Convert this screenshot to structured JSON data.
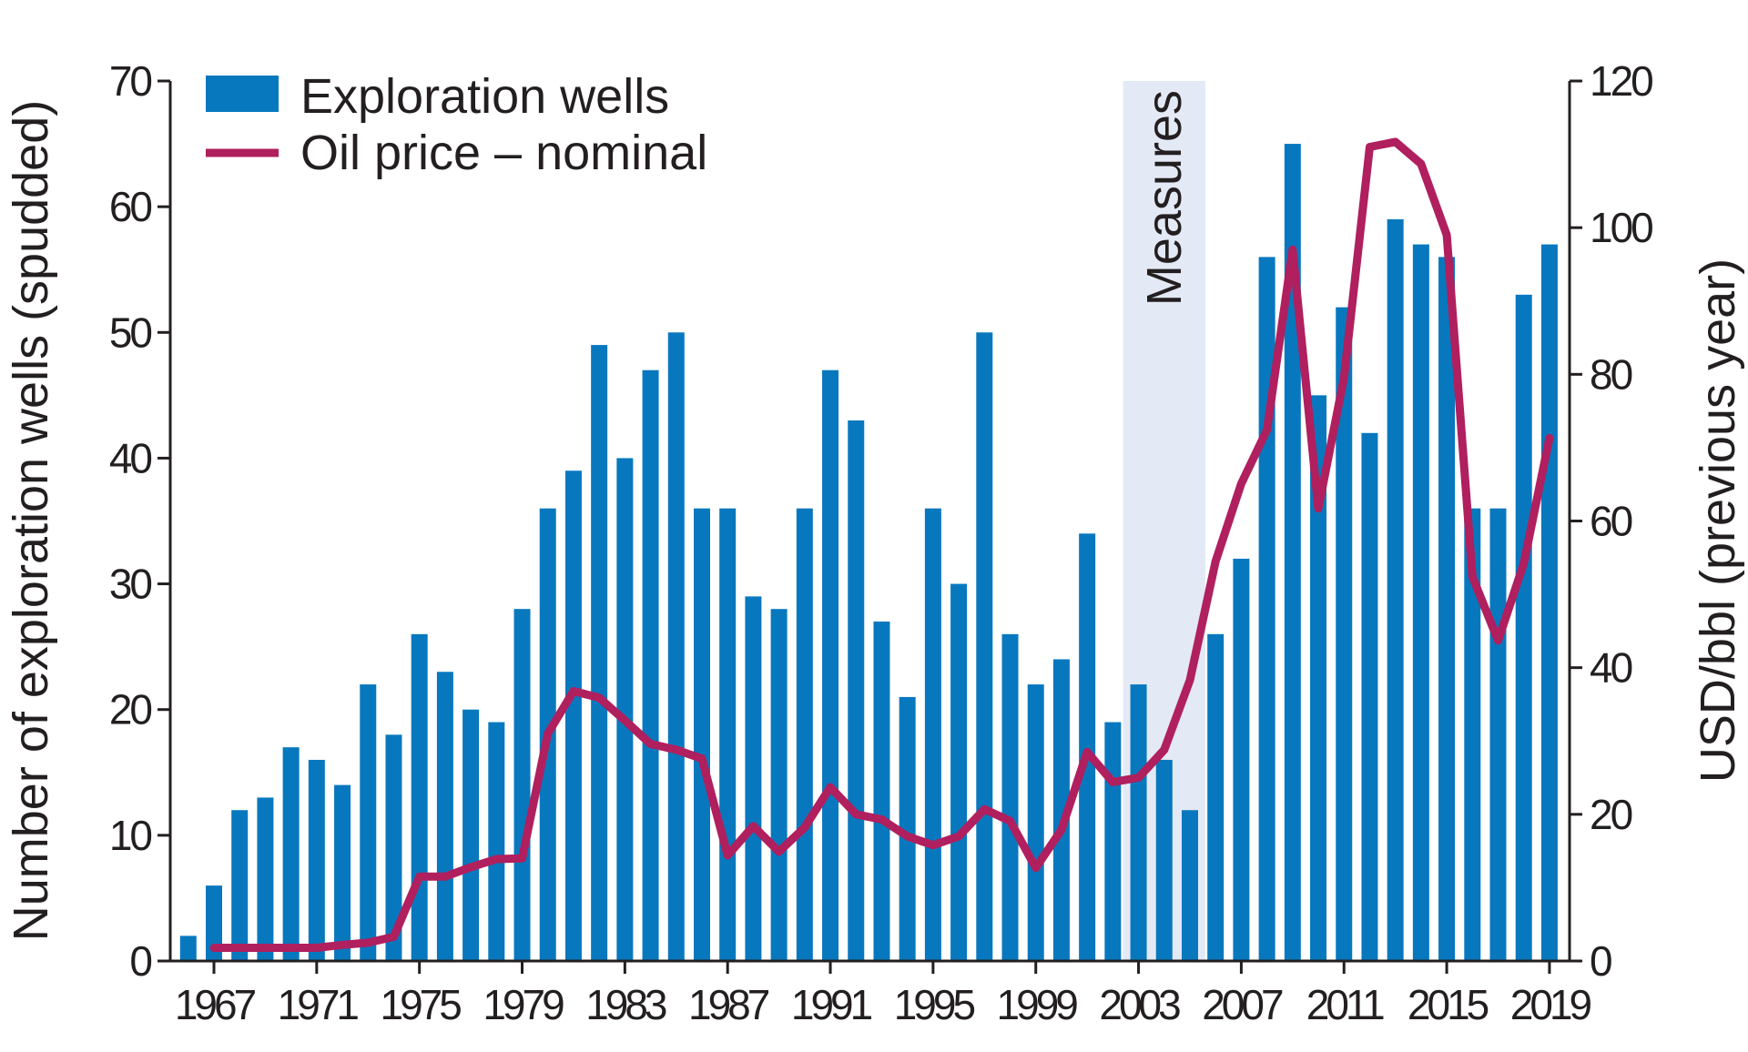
{
  "chart_data": {
    "type": "bar+line",
    "title": "",
    "ylabel": "Number of exploration wells (spudded)",
    "y2label": "USD/bbl (previous year)",
    "ylim": [
      0,
      70
    ],
    "y2lim": [
      0,
      120
    ],
    "yticks": [
      "0",
      "10",
      "20",
      "30",
      "40",
      "50",
      "60",
      "70"
    ],
    "y2ticks": [
      "0",
      "20",
      "40",
      "60",
      "80",
      "100",
      "120"
    ],
    "xtick_labels": [
      "1967",
      "1971",
      "1975",
      "1979",
      "1983",
      "1987",
      "1991",
      "1995",
      "1999",
      "2003",
      "2007",
      "2011",
      "2015",
      "2019"
    ],
    "legend_placement": "top-left",
    "shaded_region": {
      "label": "Measures",
      "from": 2002.4,
      "to": 2005.6,
      "color": "#e3e9f5"
    },
    "series": [
      {
        "name": "Exploration wells",
        "kind": "bar",
        "axis": "left",
        "color": "#0878be",
        "x": [
          1966,
          1967,
          1968,
          1969,
          1970,
          1971,
          1972,
          1973,
          1974,
          1975,
          1976,
          1977,
          1978,
          1979,
          1980,
          1981,
          1982,
          1983,
          1984,
          1985,
          1986,
          1987,
          1988,
          1989,
          1990,
          1991,
          1992,
          1993,
          1994,
          1995,
          1996,
          1997,
          1998,
          1999,
          2000,
          2001,
          2002,
          2003,
          2004,
          2005,
          2006,
          2007,
          2008,
          2009,
          2010,
          2011,
          2012,
          2013,
          2014,
          2015,
          2016,
          2017,
          2018,
          2019
        ],
        "values": [
          2,
          6,
          12,
          13,
          17,
          16,
          14,
          22,
          18,
          26,
          23,
          20,
          19,
          28,
          36,
          39,
          49,
          40,
          47,
          50,
          36,
          36,
          29,
          28,
          36,
          47,
          43,
          27,
          21,
          36,
          30,
          50,
          26,
          22,
          24,
          34,
          19,
          22,
          16,
          12,
          26,
          32,
          56,
          65,
          45,
          52,
          42,
          59,
          57,
          56,
          36,
          36,
          53,
          57
        ]
      },
      {
        "name": "Oil price – nominal",
        "kind": "line",
        "axis": "right",
        "color": "#b01f5e",
        "x": [
          1967,
          1968,
          1969,
          1970,
          1971,
          1972,
          1973,
          1974,
          1975,
          1976,
          1977,
          1978,
          1979,
          1980,
          1981,
          1982,
          1983,
          1984,
          1985,
          1986,
          1987,
          1988,
          1989,
          1990,
          1991,
          1992,
          1993,
          1994,
          1995,
          1996,
          1997,
          1998,
          1999,
          2000,
          2001,
          2002,
          2003,
          2004,
          2005,
          2006,
          2007,
          2008,
          2009,
          2010,
          2011,
          2012,
          2013,
          2014,
          2015,
          2016,
          2017,
          2018,
          2019
        ],
        "values": [
          1.8,
          1.8,
          1.8,
          1.8,
          1.8,
          2.2,
          2.5,
          3.3,
          11.5,
          11.5,
          12.8,
          13.9,
          14,
          31,
          36.8,
          35.9,
          32.8,
          29.6,
          28.8,
          27.6,
          14.4,
          18.4,
          14.9,
          18.2,
          23.7,
          20,
          19.3,
          17,
          15.8,
          17,
          20.7,
          19.1,
          12.7,
          17.9,
          28.5,
          24.4,
          25,
          28.8,
          38.3,
          54.5,
          65.1,
          72.4,
          97,
          61.7,
          79.5,
          111,
          111.7,
          108.7,
          99,
          52.4,
          43.7,
          54.2,
          71.3
        ]
      }
    ]
  }
}
